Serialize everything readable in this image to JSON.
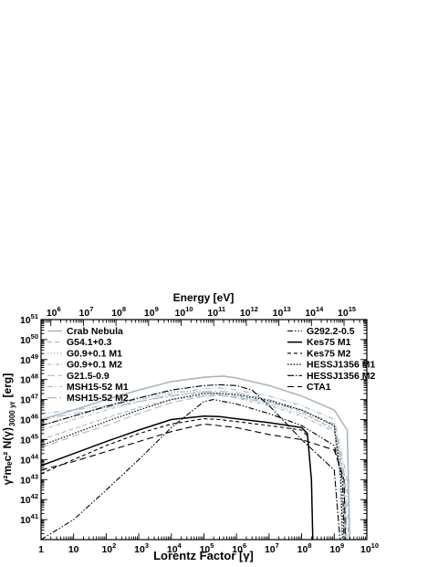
{
  "chart_data": {
    "type": "line",
    "xlabel": "Lorentz Factor [γ]",
    "x2label": "Energy [eV]",
    "ylabel_main": "γ²mₑc² N(γ)",
    "ylabel_sub": "3000 yr",
    "ylabel_unit": "[erg]",
    "x_scale": "log",
    "y_scale": "log",
    "xlim": [
      1,
      10000000000
    ],
    "ylim": [
      1e+40,
      1e+51
    ],
    "x2lim": [
      500000,
      5000000000000000
    ],
    "x_ticks": [
      {
        "exp": 0,
        "label": "1"
      },
      {
        "exp": 1,
        "label": "10"
      },
      {
        "exp": 2,
        "base": "10",
        "sup": "2"
      },
      {
        "exp": 3,
        "base": "10",
        "sup": "3"
      },
      {
        "exp": 4,
        "base": "10",
        "sup": "4"
      },
      {
        "exp": 5,
        "base": "10",
        "sup": "5"
      },
      {
        "exp": 6,
        "base": "10",
        "sup": "6"
      },
      {
        "exp": 7,
        "base": "10",
        "sup": "7"
      },
      {
        "exp": 8,
        "base": "10",
        "sup": "8"
      },
      {
        "exp": 9,
        "base": "10",
        "sup": "9"
      },
      {
        "exp": 10,
        "base": "10",
        "sup": "10"
      }
    ],
    "y_ticks": [
      {
        "exp": 41,
        "base": "10",
        "sup": "41"
      },
      {
        "exp": 42,
        "base": "10",
        "sup": "42"
      },
      {
        "exp": 43,
        "base": "10",
        "sup": "43"
      },
      {
        "exp": 44,
        "base": "10",
        "sup": "44"
      },
      {
        "exp": 45,
        "base": "10",
        "sup": "45"
      },
      {
        "exp": 46,
        "base": "10",
        "sup": "46"
      },
      {
        "exp": 47,
        "base": "10",
        "sup": "47"
      },
      {
        "exp": 48,
        "base": "10",
        "sup": "48"
      },
      {
        "exp": 49,
        "base": "10",
        "sup": "49"
      },
      {
        "exp": 50,
        "base": "10",
        "sup": "50"
      },
      {
        "exp": 51,
        "base": "10",
        "sup": "51"
      }
    ],
    "x2_ticks": [
      {
        "exp": 6,
        "base": "10",
        "sup": "6"
      },
      {
        "exp": 7,
        "base": "10",
        "sup": "7"
      },
      {
        "exp": 8,
        "base": "10",
        "sup": "8"
      },
      {
        "exp": 9,
        "base": "10",
        "sup": "9"
      },
      {
        "exp": 10,
        "base": "10",
        "sup": "10"
      },
      {
        "exp": 11,
        "base": "10",
        "sup": "11"
      },
      {
        "exp": 12,
        "base": "10",
        "sup": "12"
      },
      {
        "exp": 13,
        "base": "10",
        "sup": "13"
      },
      {
        "exp": 14,
        "base": "10",
        "sup": "14"
      },
      {
        "exp": 15,
        "base": "10",
        "sup": "15"
      }
    ],
    "legend_left": [
      0,
      1,
      2,
      3,
      4,
      5,
      6
    ],
    "legend_right": [
      7,
      8,
      9,
      10,
      11,
      12
    ],
    "series": [
      {
        "name": "Crab Nebula",
        "color": "#a9b7c2",
        "dash": "",
        "width": 1.6,
        "x": [
          1,
          10,
          100,
          1000,
          10000,
          100000,
          400000,
          1000000,
          10000000,
          100000000,
          1000000000,
          2500000000,
          2800000000,
          3000000000
        ],
        "y": [
          1e+46,
          3e+46,
          1e+47,
          3e+47,
          8e+47,
          1.3e+48,
          1.5e+48,
          1.2e+48,
          5e+47,
          1.5e+47,
          3e+46,
          3e+45,
          1e+42,
          1e+40
        ]
      },
      {
        "name": "G54.1+0.3",
        "color": "#a9b7c2",
        "dash": "5,3",
        "width": 1.1,
        "x": [
          1,
          10,
          100,
          1000,
          10000,
          100000,
          500000,
          1000000,
          10000000,
          100000000,
          1000000000,
          2000000000,
          2300000000
        ],
        "y": [
          1e+45,
          3.5e+45,
          1.2e+46,
          4e+46,
          1e+47,
          1.6e+47,
          1.8e+47,
          1.6e+47,
          8e+46,
          2.5e+46,
          3e+45,
          1e+43,
          1e+40
        ]
      },
      {
        "name": "G0.9+0.1 M1",
        "color": "#a9b7c2",
        "dash": "1.5,2",
        "width": 1.2,
        "x": [
          1,
          10,
          100,
          1000,
          10000,
          100000,
          300000,
          1000000,
          10000000,
          100000000,
          1000000000,
          1800000000,
          2000000000
        ],
        "y": [
          5e+45,
          1.5e+46,
          5e+46,
          1.3e+47,
          2.5e+47,
          2.5e+47,
          2e+47,
          1.5e+47,
          6e+46,
          2e+46,
          4e+45,
          1e+43,
          1e+40
        ]
      },
      {
        "name": "G0.9+0.1 M2",
        "color": "#a9b7c2",
        "dash": "4,2,1,2",
        "width": 1.1,
        "x": [
          1,
          10,
          100,
          1000,
          10000,
          100000,
          200000,
          1000000,
          10000000,
          100000000,
          1000000000,
          1500000000,
          1700000000
        ],
        "y": [
          3e+45,
          1e+46,
          3e+46,
          8e+46,
          1.7e+47,
          2.2e+47,
          2e+47,
          1.2e+47,
          5e+46,
          1.5e+46,
          2.5e+45,
          1e+43,
          1e+40
        ]
      },
      {
        "name": "G21.5-0.9",
        "color": "#a9b7c2",
        "dash": "8,4",
        "width": 1.1,
        "x": [
          1,
          10,
          100,
          1000,
          10000,
          100000,
          300000,
          1000000,
          10000000,
          100000000,
          1000000000,
          2000000000,
          2200000000
        ],
        "y": [
          4e+44,
          1.5e+45,
          5e+45,
          2e+46,
          7e+46,
          1.5e+47,
          1.6e+47,
          1.3e+47,
          7e+46,
          3e+46,
          5e+45,
          1e+43,
          1e+40
        ]
      },
      {
        "name": "MSH15-52 M1",
        "color": "#a9b7c2",
        "dash": "6,2,1,2,1,2",
        "width": 1.1,
        "x": [
          1,
          10,
          100,
          1000,
          10000,
          100000,
          300000,
          1000000,
          10000000,
          100000000,
          1000000000,
          2500000000,
          2700000000
        ],
        "y": [
          2e+46,
          3e+46,
          5e+46,
          1e+47,
          2e+47,
          3.5e+47,
          3.8e+47,
          3e+47,
          1.5e+47,
          5e+46,
          1e+46,
          1e+43,
          1e+40
        ]
      },
      {
        "name": "MSH15-52 M2",
        "color": "#a9b7c2",
        "dash": "10,3,2,3",
        "width": 1.1,
        "x": [
          1,
          10,
          100,
          1000,
          10000,
          100000,
          300000,
          1000000,
          10000000,
          100000000,
          1000000000,
          2200000000,
          2400000000
        ],
        "y": [
          1e+46,
          2e+46,
          4e+46,
          8e+46,
          1.5e+47,
          2.5e+47,
          2.7e+47,
          2.2e+47,
          1e+47,
          3e+46,
          6e+45,
          1e+43,
          1e+40
        ]
      },
      {
        "name": "G292.2-0.5",
        "color": "#000000",
        "dash": "6,2,1.5,2,1.5,2",
        "width": 1.1,
        "x": [
          1,
          10,
          100,
          1000,
          10000,
          100000,
          200000,
          1000000,
          10000000,
          100000000,
          1000000000,
          1800000000,
          2000000000
        ],
        "y": [
          1e+40,
          1e+41,
          3e+42,
          1e+44,
          4e+45,
          8e+46,
          1e+47,
          6e+46,
          2e+46,
          5e+45,
          5e+44,
          1e+43,
          1e+40
        ]
      },
      {
        "name": "Kes75 M1",
        "color": "#000000",
        "dash": "",
        "width": 1.5,
        "x": [
          1,
          10,
          100,
          1000,
          10000,
          100000,
          300000,
          1000000,
          10000000,
          100000000,
          150000000,
          200000000,
          220000000
        ],
        "y": [
          5e+43,
          2e+44,
          8e+44,
          3e+45,
          1e+46,
          1.5e+46,
          1.4e+46,
          1.1e+46,
          7e+45,
          4e+45,
          2e+45,
          1e+43,
          1e+40
        ]
      },
      {
        "name": "Kes75 M2",
        "color": "#000000",
        "dash": "4,3",
        "width": 1.1,
        "x": [
          1,
          10,
          100,
          1000,
          10000,
          100000,
          300000,
          1000000,
          10000000,
          100000000,
          150000000,
          200000000,
          220000000
        ],
        "y": [
          2e+43,
          1e+44,
          5e+44,
          2e+45,
          6e+45,
          1.1e+46,
          1e+46,
          8e+45,
          5e+45,
          3e+45,
          1.5e+45,
          1e+43,
          1e+40
        ]
      },
      {
        "name": "HESSJ1356 M1",
        "color": "#000000",
        "dash": "1.5,1.8",
        "width": 1.2,
        "x": [
          1,
          10,
          100,
          1000,
          10000,
          100000,
          300000,
          1000000,
          10000000,
          100000000,
          1000000000,
          1600000000,
          1800000000
        ],
        "y": [
          5e+44,
          2e+45,
          8e+45,
          3e+46,
          1e+47,
          2e+47,
          2.1e+47,
          1.8e+47,
          9e+46,
          3e+46,
          5e+45,
          1e+43,
          1e+40
        ]
      },
      {
        "name": "HESSJ1356 M2",
        "color": "#000000",
        "dash": "7,2,1.5,2",
        "width": 1.1,
        "x": [
          1,
          10,
          100,
          1000,
          10000,
          100000,
          300000,
          1000000,
          3000000,
          10000000,
          100000000,
          1000000000,
          1500000000
        ],
        "y": [
          5e+45,
          1.5e+46,
          4.5e+46,
          1.2e+47,
          3e+47,
          5e+47,
          5.5e+47,
          5e+47,
          3e+47,
          5e+46,
          1e+45,
          3e+43,
          1e+40
        ]
      },
      {
        "name": "CTA1",
        "color": "#000000",
        "dash": "7,4",
        "width": 1.1,
        "x": [
          1,
          10,
          100,
          1000,
          10000,
          100000,
          1000000,
          10000000,
          100000000,
          1000000000,
          2000000000,
          2200000000
        ],
        "y": [
          3e+43,
          8e+43,
          2.5e+44,
          8e+44,
          2.5e+45,
          6e+45,
          4e+45,
          1.8e+45,
          1e+45,
          3e+44,
          1e+43,
          1e+40
        ]
      }
    ]
  }
}
